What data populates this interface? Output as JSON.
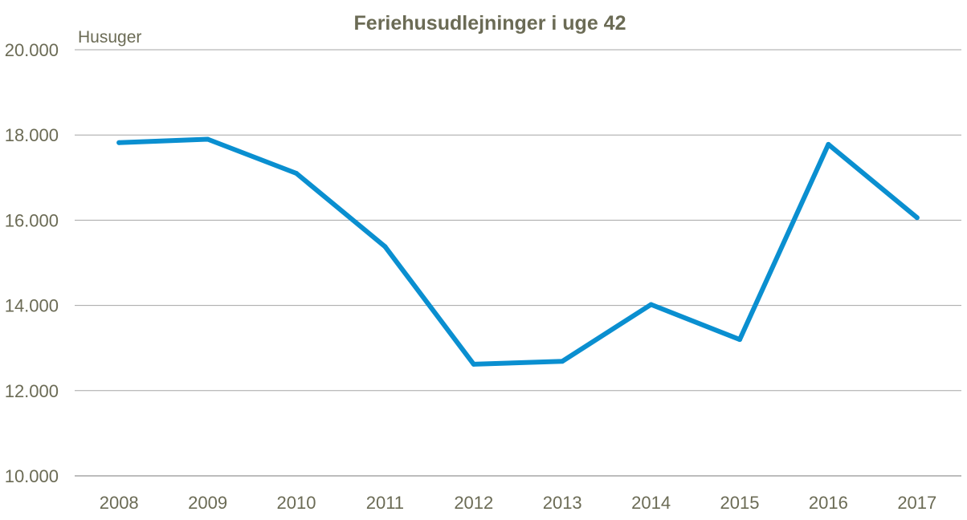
{
  "chart_data": {
    "type": "line",
    "title": "Feriehusudlejninger i uge 42",
    "ylabel": "Husuger",
    "xlabel": "",
    "categories": [
      "2008",
      "2009",
      "2010",
      "2011",
      "2012",
      "2013",
      "2014",
      "2015",
      "2016",
      "2017"
    ],
    "series": [
      {
        "values": [
          17820,
          17900,
          17100,
          15380,
          12620,
          12690,
          14020,
          13200,
          17780,
          16060
        ]
      }
    ],
    "ylim": [
      10000,
      20000
    ],
    "yticks": [
      10000,
      12000,
      14000,
      16000,
      18000,
      20000
    ],
    "ytick_labels": [
      "10.000",
      "12.000",
      "14.000",
      "16.000",
      "18.000",
      "20.000"
    ],
    "grid": "horizontal",
    "legend": "none",
    "colors": {
      "line": "#0a8fd0",
      "text": "#6b6b55",
      "grid": "#a6a6a6",
      "axis": "#a6a6a6"
    }
  }
}
